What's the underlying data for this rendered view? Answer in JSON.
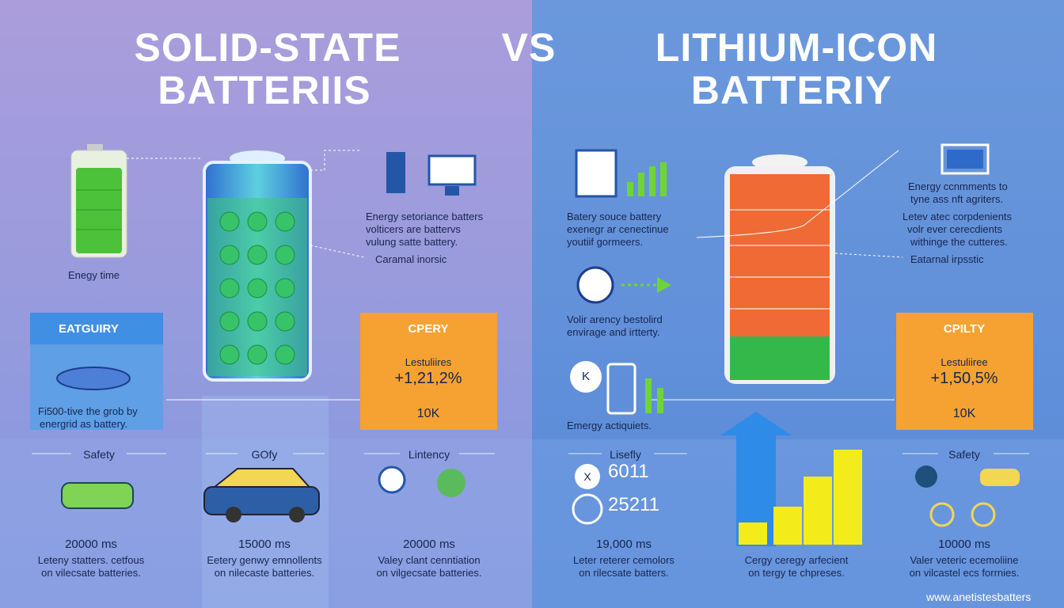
{
  "header": {
    "left_title": [
      "SOLID-STATE",
      "BATTERIIS"
    ],
    "vs": "VS",
    "right_title": [
      "LITHIUM-ICON",
      "BATTERIY"
    ]
  },
  "left": {
    "battery_label": "Enegy time",
    "description": [
      "Energy setoriance batters",
      "volticers are battervs",
      "vulung satte battery."
    ],
    "callout": "Caramal inorsic",
    "category_box": {
      "title": "EATGUIRY",
      "text": [
        "Fi500-tive the grob by",
        "energrid as battery."
      ]
    },
    "capacity_box": {
      "title": "CPERY",
      "label": "Lestuliires",
      "value": "+1,21,2%",
      "amount": "10K"
    },
    "columns": [
      {
        "title": "Safety",
        "time": "20000 ms",
        "text": [
          "Leteny statters. cetfous",
          "on vilecsate batteries."
        ]
      },
      {
        "title": "GOfy",
        "time": "15000 ms",
        "text": [
          "Eetery genwy emnollents",
          "on nilecaste batteries."
        ]
      },
      {
        "title": "Lintency",
        "time": "20000 ms",
        "text": [
          "Valey clant cenntiation",
          "on vilgecsate batteries."
        ]
      }
    ]
  },
  "right": {
    "source": [
      "Batery souce battery",
      "exenegr ar cenectinue",
      "youtiif gormeers."
    ],
    "clock_text": [
      "Volir arency bestolird",
      "envirage and irtterty."
    ],
    "emergy": "Emergy actiquiets.",
    "lisefly": {
      "title": "Lisefly",
      "icon_letter": "X",
      "values": [
        "6011",
        "25211"
      ]
    },
    "k_letter": "K",
    "comments": [
      "Energy ccnmments to",
      "tyne ass nft agriters."
    ],
    "components": [
      "Letev atec corpdenients",
      "volr ever cerecdients",
      "withinge the cutteres."
    ],
    "callout": "Eatarnal irpsstic",
    "capacity_box": {
      "title": "CPILTY",
      "label": "Lestuliiree",
      "value": "+1,50,5%",
      "amount": "10K"
    },
    "columns": [
      {
        "time": "19,000 ms",
        "text": [
          "Leter reterer cemolors",
          "on rilecsate batters."
        ]
      },
      {
        "text": [
          "Cergy ceregy arfecient",
          "on tergy te chpreses."
        ]
      },
      {
        "title": "Safety",
        "time": "10000 ms",
        "text": [
          "Valer veteric ecemoliine",
          "on vilcastel ecs forrnies."
        ]
      }
    ],
    "footer": "www.anetistesbatters"
  }
}
